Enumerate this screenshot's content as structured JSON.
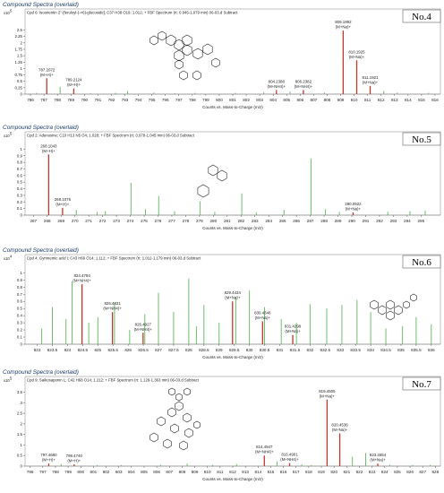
{
  "chart_data": [
    {
      "type": "bar",
      "panel_title": "Compound Spectra (overlaid)",
      "header": "Cpd 6: Isoorientin 2''-[feruloyl-(->6)-glucoside]; C37 H38 O19; 1.012; + FBF Spectrum (rt: 0.945-1.079 min) 06-03.d  Subtract",
      "tag": "No.4",
      "y_exponent": "x10",
      "y_exponent_power": "5",
      "xlabel": "Counts vs. Mass-to-Charge (m/z)",
      "xlim": [
        785.6,
        816.4
      ],
      "ylim": [
        0,
        2.8
      ],
      "xticks": [
        "786",
        "787",
        "788",
        "789",
        "790",
        "791",
        "792",
        "793",
        "794",
        "795",
        "796",
        "797",
        "798",
        "799",
        "800",
        "801",
        "802",
        "803",
        "804",
        "805",
        "806",
        "807",
        "808",
        "809",
        "810",
        "811",
        "812",
        "813",
        "814",
        "815",
        "816"
      ],
      "yticks": [
        "0",
        "0.25",
        "0.5",
        "0.75",
        "1",
        "1.25",
        "1.5",
        "1.75",
        "2",
        "2.25",
        "2.5"
      ],
      "labeled_peaks": [
        {
          "x": 787.2072,
          "y": 0.62,
          "mz": "787.2072",
          "ion": "(M+H)+"
        },
        {
          "x": 789.2124,
          "y": 0.22,
          "mz": "789.2124",
          "ion": "(M+H)+"
        },
        {
          "x": 804.2388,
          "y": 0.16,
          "mz": "804.2388",
          "ion": "(M+NH4)+"
        },
        {
          "x": 806.2382,
          "y": 0.16,
          "mz": "806.2382",
          "ion": "(M+NH4)+"
        },
        {
          "x": 809.1892,
          "y": 2.48,
          "mz": "809.1892",
          "ion": "(M+Na)+"
        },
        {
          "x": 810.1925,
          "y": 1.32,
          "mz": "810.1925",
          "ion": "(M+Na)+"
        },
        {
          "x": 811.1921,
          "y": 0.32,
          "mz": "811.1921",
          "ion": "(M+Na)+"
        }
      ],
      "other_peaks": [
        {
          "x": 786.45,
          "y": 0.05
        },
        {
          "x": 788.2,
          "y": 0.28
        },
        {
          "x": 790.45,
          "y": 0.04
        },
        {
          "x": 792.3,
          "y": 0.05
        },
        {
          "x": 793.2,
          "y": 0.12
        },
        {
          "x": 795.15,
          "y": 0.06
        },
        {
          "x": 796.7,
          "y": 0.04
        },
        {
          "x": 798.2,
          "y": 0.05
        },
        {
          "x": 801.2,
          "y": 0.05
        },
        {
          "x": 803.3,
          "y": 0.08
        },
        {
          "x": 805.25,
          "y": 0.1
        },
        {
          "x": 807.8,
          "y": 0.06
        },
        {
          "x": 812.2,
          "y": 0.12
        },
        {
          "x": 813.2,
          "y": 0.06
        },
        {
          "x": 815.5,
          "y": 0.05
        }
      ]
    },
    {
      "type": "bar",
      "panel_title": "Compound Spectra (overlaid)",
      "header": "Cpd 2: Adenosine; C10 H13 N5 O4; 1.028; + FBF Spectrum (rt: 0.978-1.045 min) 06-03.d  Subtract",
      "tag": "No.5",
      "y_exponent": "x10",
      "y_exponent_power": "5",
      "xlabel": "Counts vs. Mass-to-Charge (m/z)",
      "xlim": [
        266.4,
        296.4
      ],
      "ylim": [
        0,
        1.06
      ],
      "xticks": [
        "267",
        "268",
        "269",
        "270",
        "271",
        "272",
        "273",
        "274",
        "275",
        "276",
        "277",
        "278",
        "279",
        "280",
        "281",
        "282",
        "283",
        "284",
        "285",
        "286",
        "287",
        "288",
        "289",
        "290",
        "291",
        "292",
        "293",
        "294",
        "295"
      ],
      "yticks": [
        "0",
        "0.1",
        "0.2",
        "0.3",
        "0.4",
        "0.5",
        "0.6",
        "0.7",
        "0.8",
        "0.9",
        "1"
      ],
      "labeled_peaks": [
        {
          "x": 268.1043,
          "y": 0.92,
          "mz": "268.1043",
          "ion": "(M+H)+"
        },
        {
          "x": 269.1075,
          "y": 0.11,
          "mz": "269.1075",
          "ion": "(M+H)+"
        },
        {
          "x": 290.0922,
          "y": 0.04,
          "mz": "290.0922",
          "ion": "(M+Na)+"
        }
      ],
      "other_peaks": [
        {
          "x": 270.1,
          "y": 0.08
        },
        {
          "x": 271.6,
          "y": 0.05
        },
        {
          "x": 272.2,
          "y": 0.06
        },
        {
          "x": 274.05,
          "y": 0.49
        },
        {
          "x": 275.1,
          "y": 0.09
        },
        {
          "x": 276.05,
          "y": 0.29
        },
        {
          "x": 277.2,
          "y": 0.06
        },
        {
          "x": 279.05,
          "y": 0.21
        },
        {
          "x": 280.1,
          "y": 0.05
        },
        {
          "x": 282.05,
          "y": 0.33
        },
        {
          "x": 283.1,
          "y": 0.04
        },
        {
          "x": 285.1,
          "y": 0.08
        },
        {
          "x": 287.05,
          "y": 0.86
        },
        {
          "x": 288.1,
          "y": 0.09
        },
        {
          "x": 289.1,
          "y": 0.05
        },
        {
          "x": 292.6,
          "y": 0.05
        },
        {
          "x": 294.2,
          "y": 0.06
        },
        {
          "x": 295.3,
          "y": 0.07
        }
      ]
    },
    {
      "type": "bar",
      "panel_title": "Compound Spectra (overlaid)",
      "header": "Cpd 4: Gymnemic acid I; C43 H66 O14; 1.112; + FBF Spectrum (rt: 1.012-1.179 min) 06-03.d  Subtract",
      "tag": "No.6",
      "y_exponent": "x10",
      "y_exponent_power": "4",
      "xlabel": "Counts vs. Mass-to-Charge (m/z)",
      "xlim": [
        822.6,
        836.3
      ],
      "ylim": [
        0,
        1.08
      ],
      "xticks": [
        "823",
        "823.5",
        "824",
        "824.5",
        "825",
        "825.5",
        "826",
        "826.5",
        "827",
        "827.5",
        "828",
        "828.5",
        "829",
        "829.5",
        "830",
        "830.5",
        "831",
        "831.5",
        "832",
        "832.5",
        "833",
        "833.5",
        "834",
        "834.5",
        "835",
        "835.5",
        "836"
      ],
      "yticks": [
        "0",
        "0.1",
        "0.2",
        "0.3",
        "0.4",
        "0.5",
        "0.6",
        "0.7",
        "0.8",
        "0.9",
        "1"
      ],
      "labeled_peaks": [
        {
          "x": 824.4794,
          "y": 0.84,
          "mz": "824.4794",
          "ion": "(M+NH4)+"
        },
        {
          "x": 825.4831,
          "y": 0.45,
          "mz": "825.4831",
          "ion": "(M+NH4)+"
        },
        {
          "x": 826.4927,
          "y": 0.16,
          "mz": "826.4927",
          "ion": "(M+NH4)+"
        },
        {
          "x": 829.4434,
          "y": 0.6,
          "mz": "829.4434",
          "ion": "(M+Na)+"
        },
        {
          "x": 830.4346,
          "y": 0.32,
          "mz": "830.4346",
          "ion": "(M+Na)+"
        },
        {
          "x": 831.4299,
          "y": 0.13,
          "mz": "831.4299",
          "ion": "(M+Na)+"
        }
      ],
      "other_peaks": [
        {
          "x": 823.15,
          "y": 0.22
        },
        {
          "x": 823.5,
          "y": 0.52
        },
        {
          "x": 823.95,
          "y": 0.35
        },
        {
          "x": 824.15,
          "y": 0.88
        },
        {
          "x": 824.7,
          "y": 0.3
        },
        {
          "x": 825.0,
          "y": 0.38
        },
        {
          "x": 825.55,
          "y": 0.58
        },
        {
          "x": 826.05,
          "y": 0.2
        },
        {
          "x": 826.55,
          "y": 0.42
        },
        {
          "x": 827.0,
          "y": 0.72
        },
        {
          "x": 827.5,
          "y": 0.45
        },
        {
          "x": 828.0,
          "y": 0.92
        },
        {
          "x": 828.25,
          "y": 0.25
        },
        {
          "x": 828.5,
          "y": 0.55
        },
        {
          "x": 829.0,
          "y": 0.3
        },
        {
          "x": 829.55,
          "y": 0.66
        },
        {
          "x": 830.0,
          "y": 0.75
        },
        {
          "x": 830.5,
          "y": 0.52
        },
        {
          "x": 831.05,
          "y": 0.35
        },
        {
          "x": 831.55,
          "y": 0.3
        },
        {
          "x": 832.0,
          "y": 0.56
        },
        {
          "x": 832.55,
          "y": 0.5
        },
        {
          "x": 833.05,
          "y": 0.55
        },
        {
          "x": 833.55,
          "y": 0.62
        },
        {
          "x": 834.0,
          "y": 0.45
        },
        {
          "x": 834.5,
          "y": 0.22
        },
        {
          "x": 835.05,
          "y": 0.25
        },
        {
          "x": 835.5,
          "y": 0.38
        },
        {
          "x": 836.0,
          "y": 0.28
        }
      ]
    },
    {
      "type": "bar",
      "panel_title": "Compound Spectra (overlaid)",
      "header": "Cpd 9: Saikosaponin L; C42 H68 O14; 1.212; + FBF Spectrum (rt: 1.129-1.363 min) 06-03.d  Subtract",
      "tag": "No.7",
      "y_exponent": "x10",
      "y_exponent_power": "5",
      "xlabel": "Counts vs. Mass-to-Charge (m/z)",
      "xlim": [
        795.6,
        828.4
      ],
      "ylim": [
        0,
        3.65
      ],
      "xticks": [
        "796",
        "797",
        "798",
        "799",
        "800",
        "801",
        "802",
        "803",
        "804",
        "805",
        "806",
        "807",
        "808",
        "809",
        "810",
        "811",
        "812",
        "813",
        "814",
        "815",
        "816",
        "817",
        "818",
        "819",
        "820",
        "821",
        "822",
        "823",
        "824",
        "825",
        "826",
        "827",
        "828"
      ],
      "yticks": [
        "0",
        "0.5",
        "1",
        "1.5",
        "2",
        "2.5",
        "3",
        "3.5"
      ],
      "labeled_peaks": [
        {
          "x": 797.468,
          "y": 0.12,
          "mz": "797.4680",
          "ion": "(M+H)+"
        },
        {
          "x": 799.474,
          "y": 0.08,
          "mz": "799.4740",
          "ion": "(M+H)+"
        },
        {
          "x": 814.4947,
          "y": 0.5,
          "mz": "814.4947",
          "ion": "(M+NH4)+"
        },
        {
          "x": 816.4901,
          "y": 0.14,
          "mz": "816.4901",
          "ion": "(M+NH4)+"
        },
        {
          "x": 819.4505,
          "y": 3.15,
          "mz": "819.4505",
          "ion": "(M+Na)+"
        },
        {
          "x": 820.4536,
          "y": 1.55,
          "mz": "820.4536",
          "ion": "(M+Na)+"
        },
        {
          "x": 823.4554,
          "y": 0.12,
          "mz": "823.4554",
          "ion": "(M+Na)+"
        }
      ],
      "other_peaks": [
        {
          "x": 798.45,
          "y": 0.1
        },
        {
          "x": 801.3,
          "y": 0.05
        },
        {
          "x": 803.2,
          "y": 0.05
        },
        {
          "x": 806.3,
          "y": 0.06
        },
        {
          "x": 808.4,
          "y": 0.12
        },
        {
          "x": 810.4,
          "y": 0.06
        },
        {
          "x": 812.3,
          "y": 0.1
        },
        {
          "x": 815.5,
          "y": 0.22
        },
        {
          "x": 817.45,
          "y": 0.08
        },
        {
          "x": 818.2,
          "y": 0.05
        },
        {
          "x": 821.45,
          "y": 0.45
        },
        {
          "x": 822.5,
          "y": 0.62
        },
        {
          "x": 824.4,
          "y": 0.06
        },
        {
          "x": 826.2,
          "y": 0.05
        },
        {
          "x": 827.6,
          "y": 0.06
        }
      ]
    }
  ],
  "colors": {
    "labeled_peak": "#c0392b",
    "other_peak": "#5cb85c",
    "panel_title": "#1a3a6a"
  }
}
